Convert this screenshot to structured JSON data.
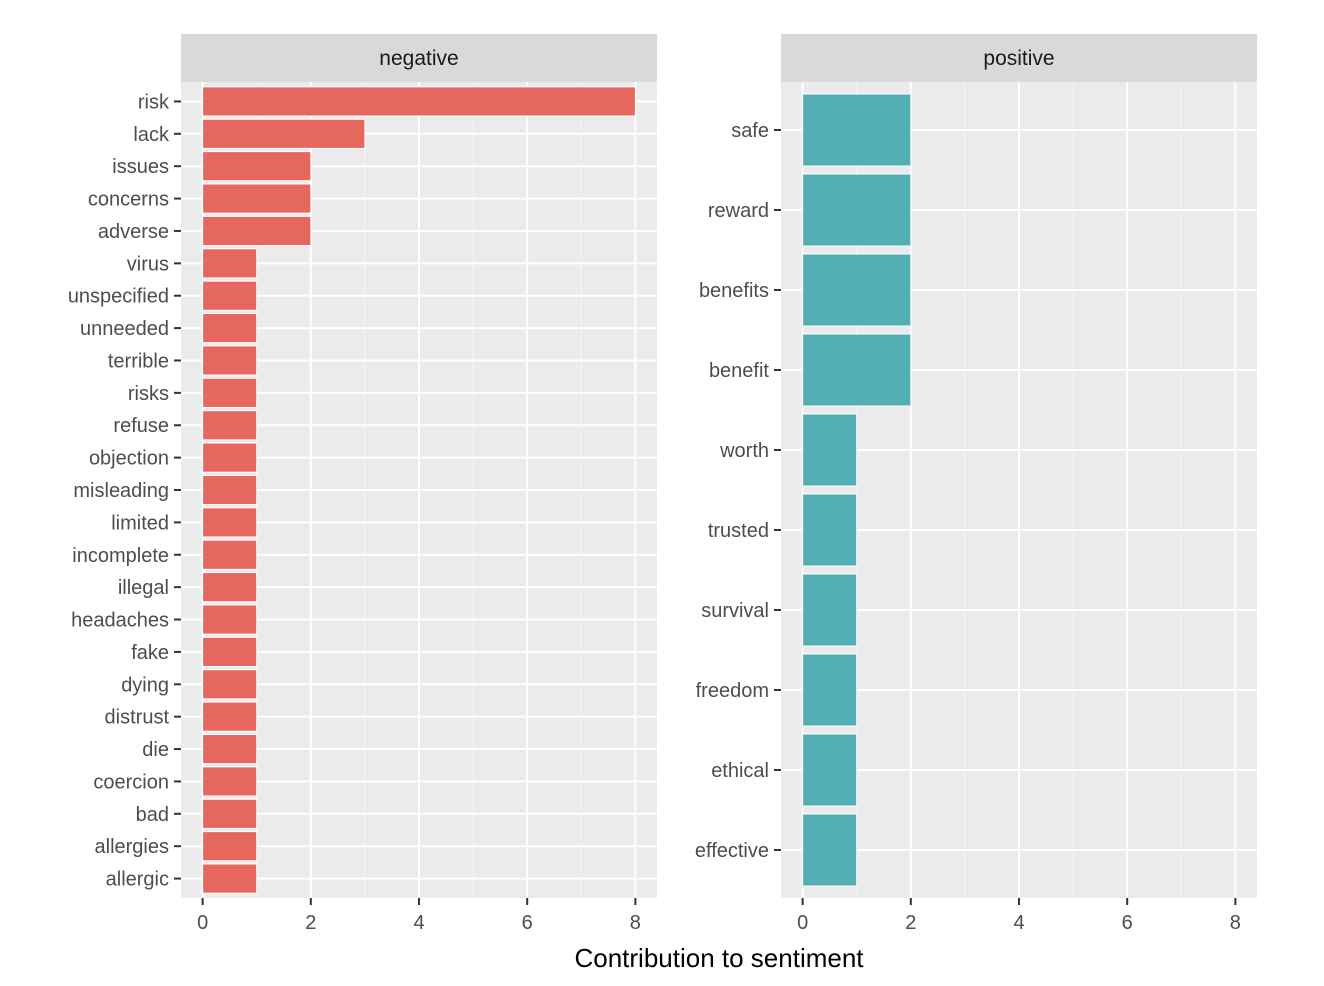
{
  "chart_data": {
    "type": "bar",
    "orientation": "horizontal",
    "xlabel": "Contribution to sentiment",
    "xlim": [
      0,
      8
    ],
    "x_ticks": [
      0,
      2,
      4,
      6,
      8
    ],
    "grid": true,
    "panels": [
      {
        "name": "negative",
        "color": "#E5675E",
        "categories": [
          "risk",
          "lack",
          "issues",
          "concerns",
          "adverse",
          "virus",
          "unspecified",
          "unneeded",
          "terrible",
          "risks",
          "refuse",
          "objection",
          "misleading",
          "limited",
          "incomplete",
          "illegal",
          "headaches",
          "fake",
          "dying",
          "distrust",
          "die",
          "coercion",
          "bad",
          "allergies",
          "allergic"
        ],
        "values": [
          8,
          3,
          2,
          2,
          2,
          1,
          1,
          1,
          1,
          1,
          1,
          1,
          1,
          1,
          1,
          1,
          1,
          1,
          1,
          1,
          1,
          1,
          1,
          1,
          1
        ]
      },
      {
        "name": "positive",
        "color": "#53AFB4",
        "categories": [
          "safe",
          "reward",
          "benefits",
          "benefit",
          "worth",
          "trusted",
          "survival",
          "freedom",
          "ethical",
          "effective"
        ],
        "values": [
          2,
          2,
          2,
          2,
          1,
          1,
          1,
          1,
          1,
          1
        ]
      }
    ]
  }
}
